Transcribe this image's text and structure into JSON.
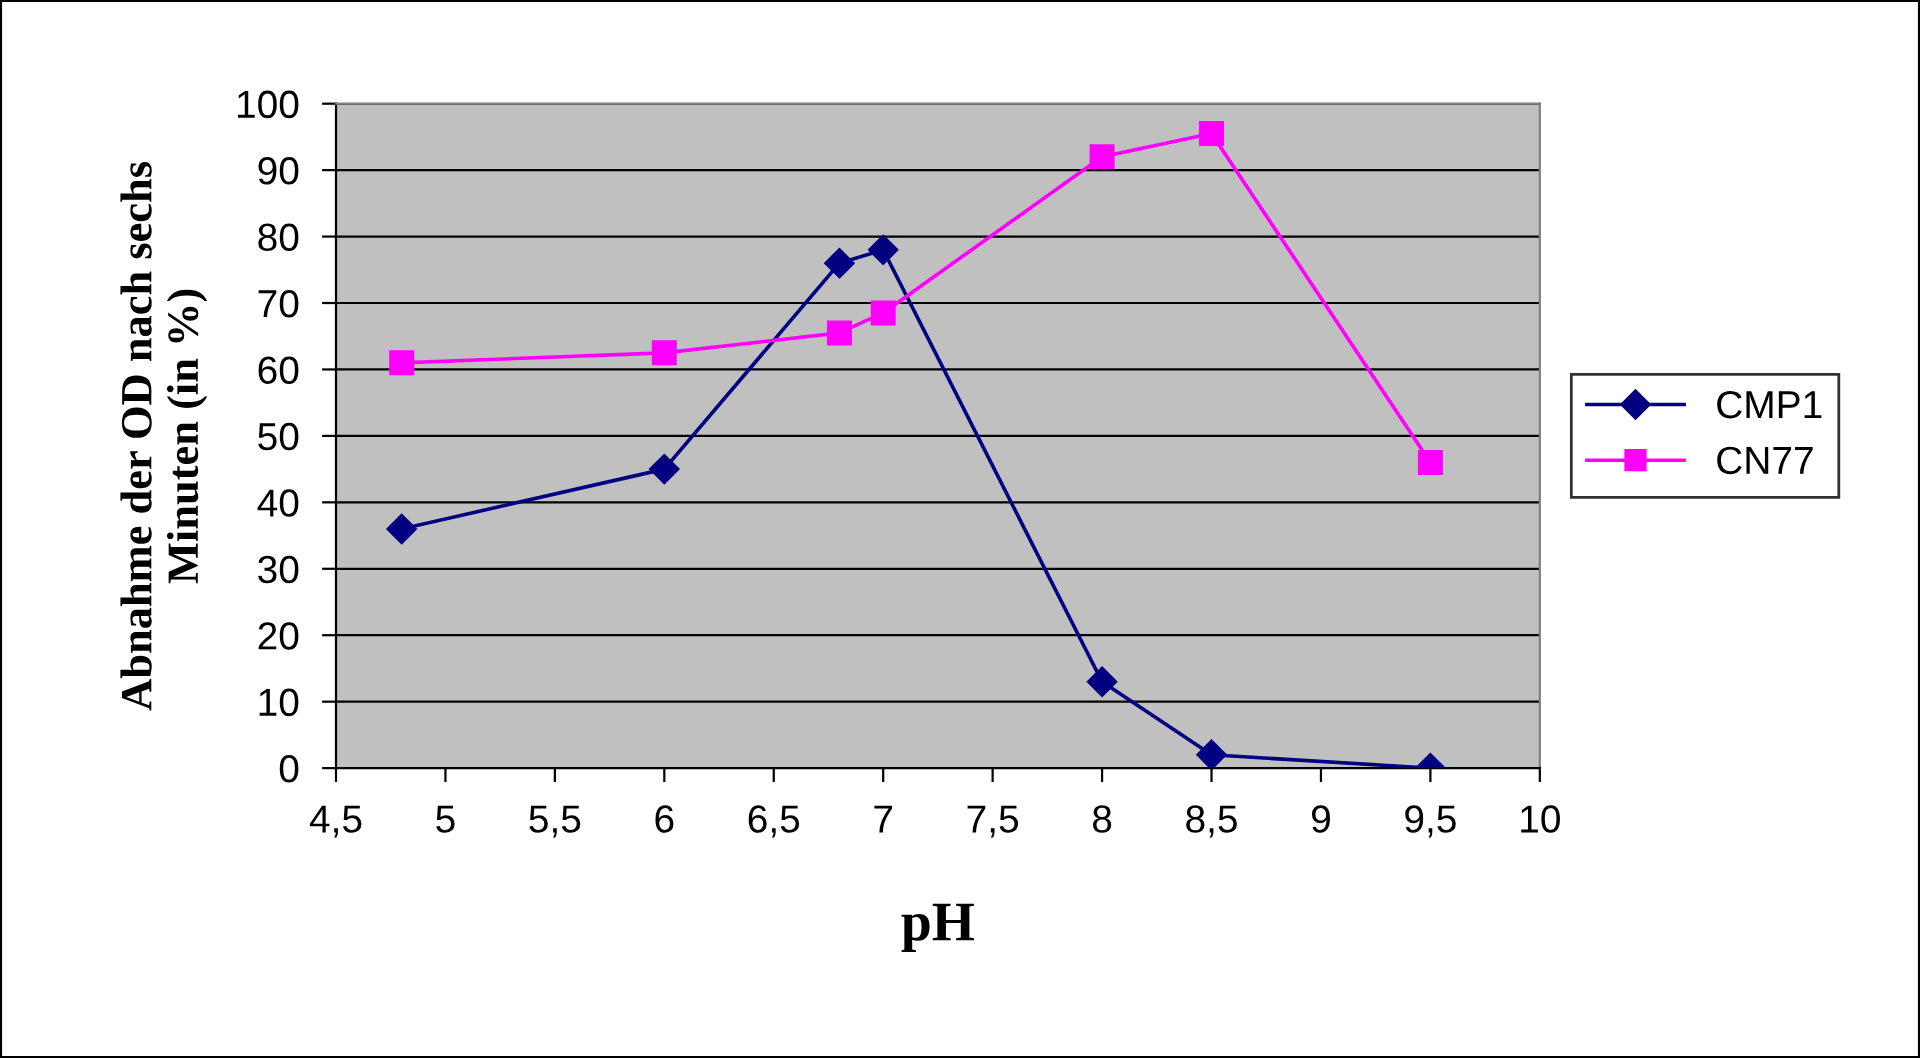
{
  "chart_data": {
    "type": "line",
    "xlabel": "pH",
    "ylabel": "Abnahme der OD nach sechs\nMinuten (in %)",
    "x": [
      4.8,
      6,
      6.8,
      7,
      8,
      8.5,
      9.5
    ],
    "series": [
      {
        "name": "CMP1",
        "color": "#000080",
        "marker": "diamond",
        "values": [
          36,
          45,
          76,
          78,
          13,
          2,
          0
        ]
      },
      {
        "name": "CN77",
        "color": "#ff00ff",
        "marker": "square",
        "values": [
          61,
          62.5,
          65.5,
          68.5,
          92,
          95.5,
          46
        ]
      }
    ],
    "xlim": [
      4.5,
      10
    ],
    "xticks": [
      {
        "value": 4.5,
        "label": "4,5"
      },
      5,
      {
        "value": 5.5,
        "label": "5,5"
      },
      6,
      {
        "value": 6.5,
        "label": "6,5"
      },
      7,
      {
        "value": 7.5,
        "label": "7,5"
      },
      8,
      {
        "value": 8.5,
        "label": "8,5"
      },
      9,
      {
        "value": 9.5,
        "label": "9,5"
      },
      10
    ],
    "ylim": [
      0,
      100
    ],
    "yticks": [
      0,
      10,
      20,
      30,
      40,
      50,
      60,
      70,
      80,
      90,
      100
    ],
    "grid": "y",
    "legend": "right",
    "line_style": "solid"
  }
}
